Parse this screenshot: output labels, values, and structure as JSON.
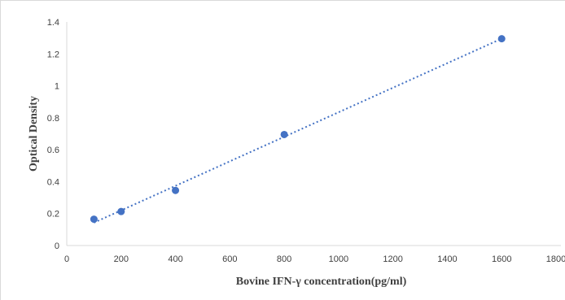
{
  "chart_data": {
    "type": "scatter",
    "title": "",
    "xlabel": "Bovine IFN-γ concentration(pg/ml)",
    "ylabel": "Optical Density",
    "xlim": [
      0,
      1800
    ],
    "ylim": [
      0,
      1.4
    ],
    "x_ticks": [
      "0",
      "200",
      "400",
      "600",
      "800",
      "1000",
      "1200",
      "1400",
      "1600",
      "1800"
    ],
    "y_ticks": [
      "0",
      "0.2",
      "0.4",
      "0.6",
      "0.8",
      "1",
      "1.2",
      "1.4"
    ],
    "grid": false,
    "legend": "none",
    "trendline": "linear, dotted",
    "point_color": "#4472c4",
    "series": [
      {
        "x": [
          100,
          200,
          400,
          800,
          1600
        ],
        "y": [
          0.165,
          0.213,
          0.345,
          0.695,
          1.295
        ]
      }
    ]
  }
}
